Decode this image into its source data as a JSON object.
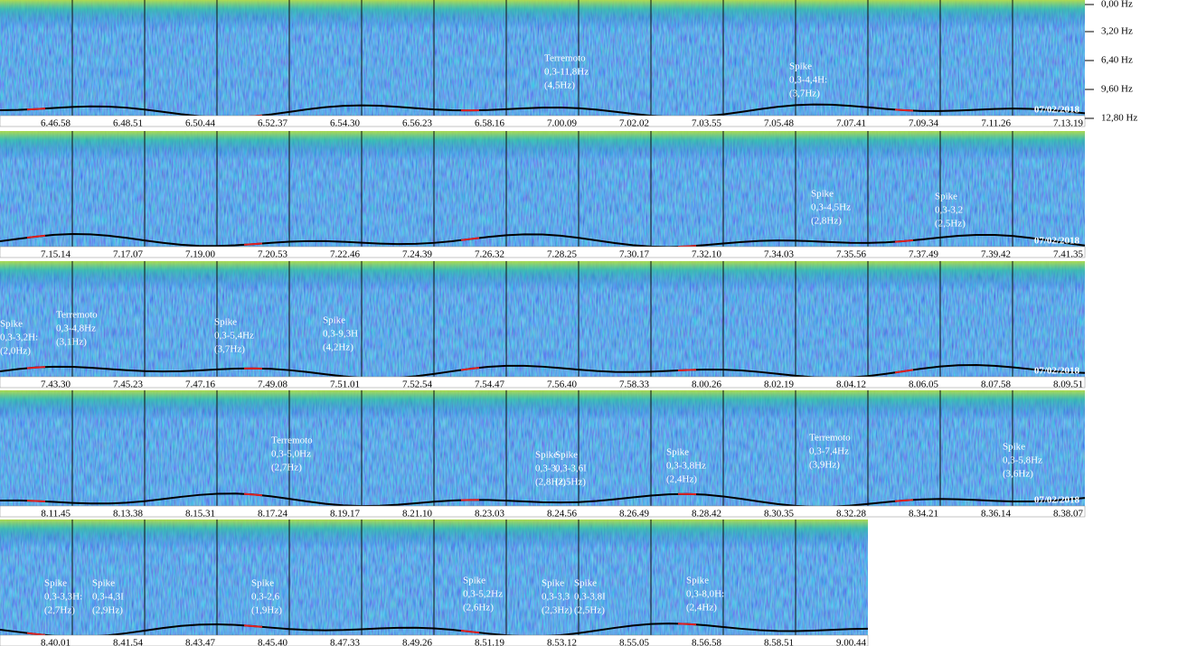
{
  "frequency_axis": [
    "0,00 Hz",
    "3,20 Hz",
    "6,40 Hz",
    "9,60 Hz",
    "12,80 Hz"
  ],
  "rows": [
    {
      "times": [
        "6.46.58",
        "6.48.51",
        "6.50.44",
        "6.52.37",
        "6.54.30",
        "6.56.23",
        "6.58.16",
        "7.00.09",
        "7.02.02",
        "7.03.55",
        "7.05.48",
        "7.07.41",
        "7.09.34",
        "7.11.26",
        "7.13.19"
      ],
      "date": "07/02/2018",
      "annotations": [
        {
          "lines": [
            "Terremoto",
            "0,3-11,8Hz",
            "(4,5Hz)"
          ]
        },
        {
          "lines": [
            "Spike",
            "0,3-4,4H:",
            "(3,7Hz)"
          ]
        }
      ]
    },
    {
      "times": [
        "7.15.14",
        "7.17.07",
        "7.19.00",
        "7.20.53",
        "7.22.46",
        "7.24.39",
        "7.26.32",
        "7.28.25",
        "7.30.17",
        "7.32.10",
        "7.34.03",
        "7.35.56",
        "7.37.49",
        "7.39.42",
        "7.41.35"
      ],
      "date": "07/02/2018",
      "annotations": [
        {
          "lines": [
            "Spike",
            "0,3-4,5Hz",
            "(2,8Hz)"
          ]
        },
        {
          "lines": [
            "Spike",
            "0,3-3,2",
            "(2,5Hz)"
          ]
        }
      ]
    },
    {
      "times": [
        "7.43.30",
        "7.45.23",
        "7.47.16",
        "7.49.08",
        "7.51.01",
        "7.52.54",
        "7.54.47",
        "7.56.40",
        "7.58.33",
        "8.00.26",
        "8.02.19",
        "8.04.12",
        "8.06.05",
        "8.07.58",
        "8.09.51"
      ],
      "date": "07/02/2018",
      "annotations": [
        {
          "lines": [
            "Spike",
            "0,3-3,2H:",
            "(2,0Hz)"
          ]
        },
        {
          "lines": [
            "Terremoto",
            "0,3-4,8Hz",
            "(3,1Hz)"
          ]
        },
        {
          "lines": [
            "Spike",
            "0,3-5,4Hz",
            "(3,7Hz)"
          ]
        },
        {
          "lines": [
            "Spike",
            "0,3-9,3H",
            "(4,2Hz)"
          ]
        }
      ]
    },
    {
      "times": [
        "8.11.45",
        "8.13.38",
        "8.15.31",
        "8.17.24",
        "8.19.17",
        "8.21.10",
        "8.23.03",
        "8.24.56",
        "8.26.49",
        "8.28.42",
        "8.30.35",
        "8.32.28",
        "8.34.21",
        "8.36.14",
        "8.38.07"
      ],
      "date": "07/02/2018",
      "annotations": [
        {
          "lines": [
            "Terremoto",
            "0,3-5,0Hz",
            "(2,7Hz)"
          ]
        },
        {
          "lines": [
            "Spike",
            "0,3-3,",
            "(2,8Hz)"
          ]
        },
        {
          "lines": [
            "Spike",
            "0,3-3,6I",
            "(2,5Hz)"
          ]
        },
        {
          "lines": [
            "Spike",
            "0,3-3,8Hz",
            "(2,4Hz)"
          ]
        },
        {
          "lines": [
            "Terremoto",
            "0,3-7,4Hz",
            "(3,9Hz)"
          ]
        },
        {
          "lines": [
            "Spike",
            "0,3-5,8Hz",
            "(3,6Hz)"
          ]
        }
      ]
    },
    {
      "times": [
        "8.40.01",
        "8.41.54",
        "8.43.47",
        "8.45.40",
        "8.47.33",
        "8.49.26",
        "8.51.19",
        "8.53.12",
        "8.55.05",
        "8.56.58",
        "8.58.51",
        "9.00.44"
      ],
      "annotations": [
        {
          "lines": [
            "Spike",
            "0,3-3,3H:",
            "(2,7Hz)"
          ]
        },
        {
          "lines": [
            "Spike",
            "0,3-4,3I",
            "(2,9Hz)"
          ]
        },
        {
          "lines": [
            "Spike",
            "0,3-2,6",
            "(1,9Hz)"
          ]
        },
        {
          "lines": [
            "Spike",
            "0,3-5,2Hz",
            "(2,6Hz)"
          ]
        },
        {
          "lines": [
            "Spike",
            "0,3-3,3",
            "(2,3Hz)"
          ]
        },
        {
          "lines": [
            "Spike",
            "0,3-3,8I",
            "(2,5Hz)"
          ]
        },
        {
          "lines": [
            "Spike",
            "0,3-8,0H:",
            "(2,4Hz)"
          ]
        }
      ]
    }
  ]
}
